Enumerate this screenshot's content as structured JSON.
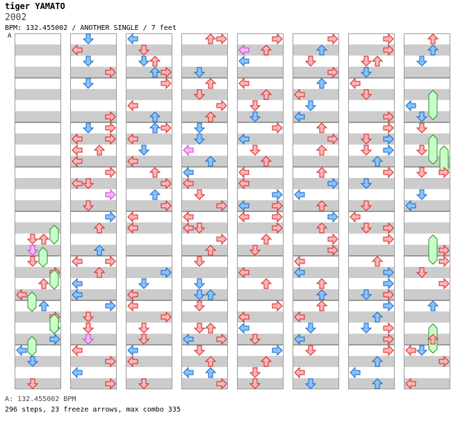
{
  "header": {
    "title": "tiger YAMATO",
    "artist": "2002",
    "info": "BPM: 132.455002 / ANOTHER SINGLE / 7 feet"
  },
  "chart_marker": "A",
  "footer": {
    "bpm": "A: 132.455002 BPM",
    "stats": "296 steps, 23 freeze arrows, max combo 335"
  },
  "colors": {
    "stripe": "#cccccc",
    "border": "#999999",
    "arrow_red": "#ffb5b5",
    "arrow_red_edge": "#d02020",
    "arrow_blue": "#87c4ff",
    "arrow_blue_edge": "#1560c0",
    "arrow_pink": "#ffb5ff",
    "arrow_pink_edge": "#c040c0",
    "freeze": "#c8ffc8",
    "freeze_edge": "#209020"
  },
  "chart_data": {
    "type": "step-chart",
    "columns": 8,
    "measures_per_column": 8,
    "lanes": [
      "left",
      "down",
      "up",
      "right"
    ],
    "steps_per_measure": 4,
    "steps_total": 296,
    "freeze_arrows": 23,
    "max_combo": 335,
    "bpm": 132.455002
  }
}
